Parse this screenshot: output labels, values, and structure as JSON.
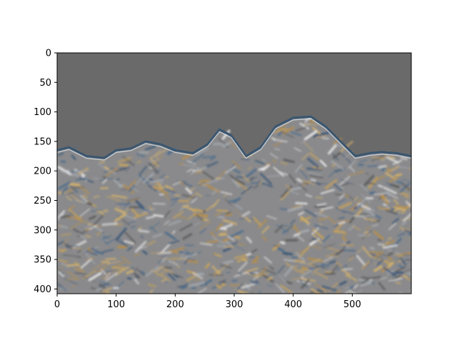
{
  "chart_data": {
    "type": "heatmap",
    "title": "",
    "xlabel": "",
    "ylabel": "",
    "image_size": [
      600,
      408
    ],
    "xlim": [
      0,
      600
    ],
    "ylim": [
      408,
      0
    ],
    "y_inverted": true,
    "grid": false,
    "x_ticks": [
      0,
      100,
      200,
      300,
      400,
      500
    ],
    "y_ticks": [
      0,
      50,
      100,
      150,
      200,
      250,
      300,
      350,
      400
    ],
    "x_tick_labels": [
      "0",
      "100",
      "200",
      "300",
      "400",
      "500"
    ],
    "y_tick_labels": [
      "0",
      "50",
      "100",
      "150",
      "200",
      "250",
      "300",
      "350",
      "400"
    ],
    "content": "Edge-filtered landscape image: flat gray sky above a jagged mountain ridge, textured terrain below",
    "sky_color": "#6a6a6a",
    "ridge_profile": [
      [
        0,
        165
      ],
      [
        20,
        160
      ],
      [
        50,
        175
      ],
      [
        80,
        178
      ],
      [
        100,
        165
      ],
      [
        125,
        162
      ],
      [
        150,
        150
      ],
      [
        175,
        155
      ],
      [
        200,
        165
      ],
      [
        230,
        170
      ],
      [
        255,
        155
      ],
      [
        275,
        130
      ],
      [
        295,
        140
      ],
      [
        320,
        175
      ],
      [
        345,
        160
      ],
      [
        370,
        125
      ],
      [
        400,
        110
      ],
      [
        430,
        108
      ],
      [
        455,
        125
      ],
      [
        480,
        150
      ],
      [
        505,
        175
      ],
      [
        530,
        170
      ],
      [
        550,
        168
      ],
      [
        575,
        170
      ],
      [
        600,
        175
      ]
    ]
  }
}
